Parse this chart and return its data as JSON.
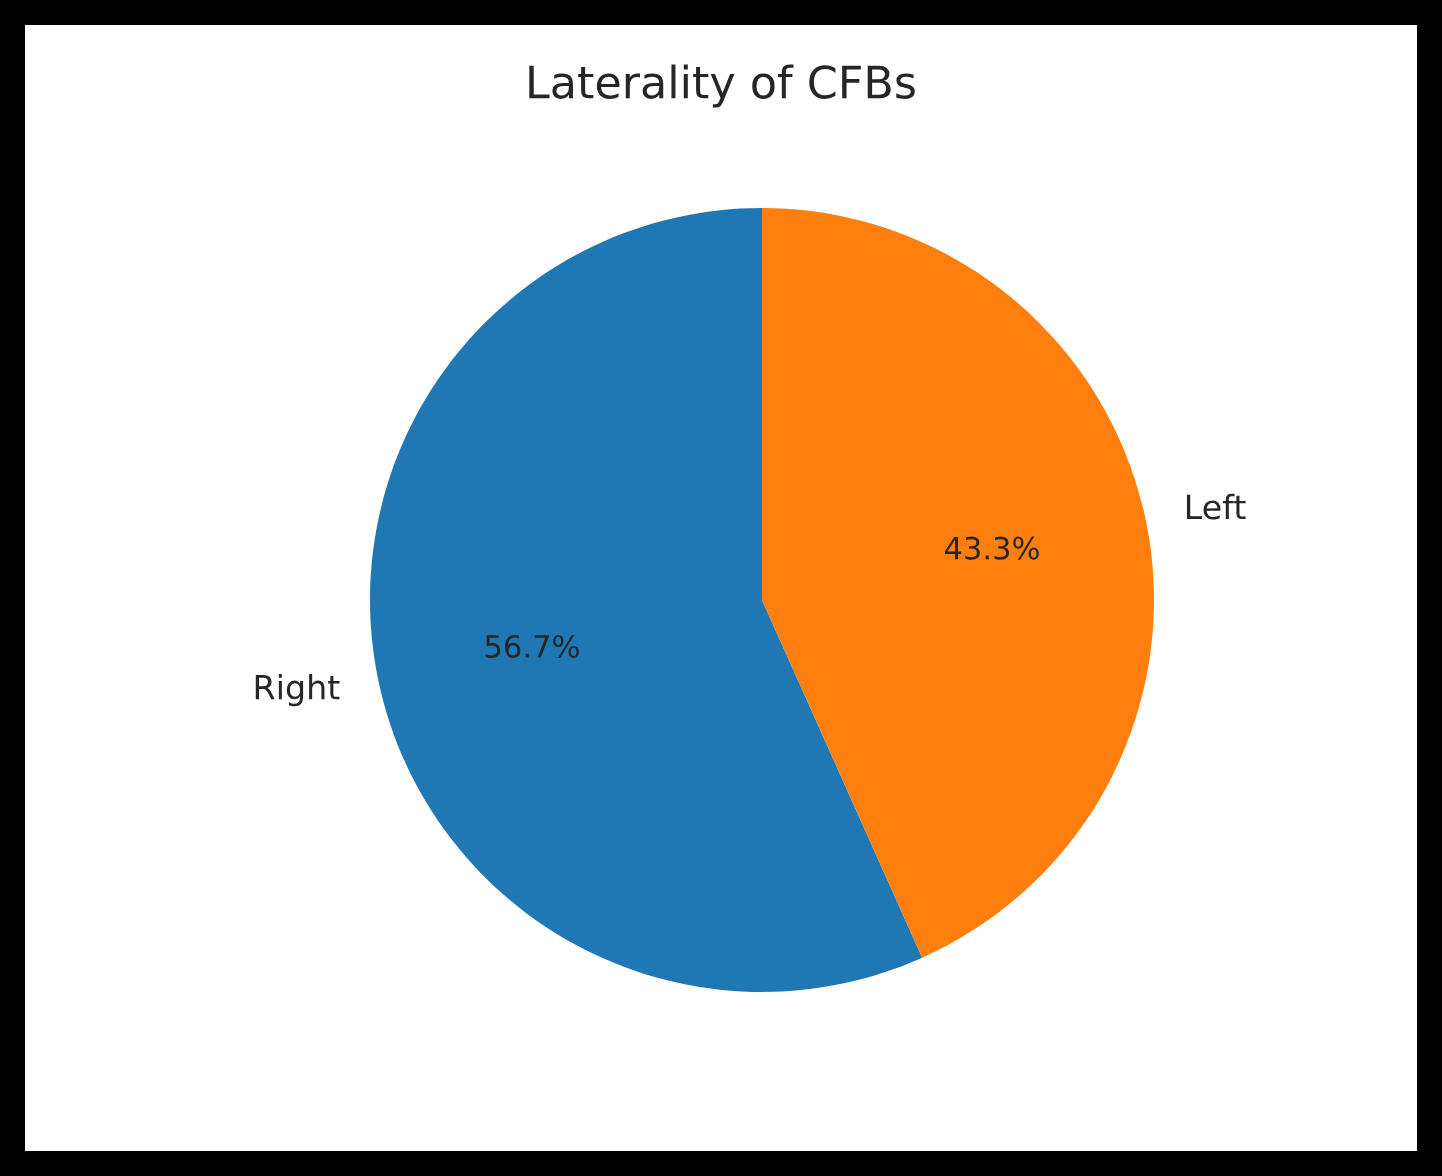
{
  "chart_data": {
    "type": "pie",
    "title": "Laterality of CFBs",
    "categories": [
      "Right",
      "Left"
    ],
    "values": [
      56.7,
      43.3
    ],
    "colors": [
      "#1f77b4",
      "#ff7f0e"
    ],
    "value_labels": [
      "56.7%",
      "43.3%"
    ]
  }
}
